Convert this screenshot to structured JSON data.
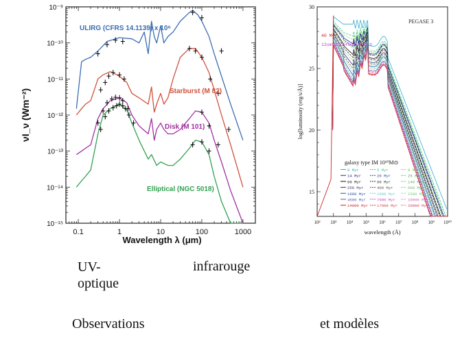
{
  "captions": {
    "uv": "UV-\noptique",
    "infra": "infrarouge",
    "observations": "Observations",
    "models": "et modèles"
  },
  "chart_data": [
    {
      "type": "line",
      "xscale": "log",
      "yscale": "log",
      "xlim": [
        0.05,
        2000
      ],
      "ylim": [
        1e-15,
        1e-09
      ],
      "xlabel": "Wavelength λ (μm)",
      "ylabel": "νI_ν (Wm⁻²)",
      "xticklabels": [
        "0.1",
        "1",
        "10",
        "100",
        "1000"
      ],
      "yticklabels": [
        "10⁻¹⁵",
        "10⁻¹⁴",
        "10⁻¹³",
        "10⁻¹²",
        "10⁻¹¹",
        "10⁻¹⁰",
        "10⁻⁹"
      ],
      "series": [
        {
          "name": "ULIRG (CFRS 14.1139) x 10⁶",
          "color": "#3a6cb0",
          "x": [
            0.09,
            0.12,
            0.15,
            0.2,
            0.3,
            0.5,
            1,
            2,
            3,
            4,
            5,
            6,
            7,
            8,
            10,
            12,
            15,
            20,
            30,
            50,
            60,
            80,
            100,
            150,
            200,
            300,
            500,
            1000
          ],
          "y": [
            1.5e-12,
            3e-11,
            3.5e-11,
            4e-11,
            6e-11,
            1.1e-10,
            1.4e-10,
            1.3e-10,
            1e-10,
            2e-10,
            5e-11,
            4e-10,
            1.5e-10,
            1e-10,
            3e-10,
            1e-10,
            1.5e-10,
            2e-10,
            4e-10,
            7e-10,
            8e-10,
            6e-10,
            4e-10,
            1.5e-10,
            5e-11,
            1.2e-11,
            2e-12,
            2e-13
          ],
          "points_x": [
            0.3,
            0.5,
            0.8,
            1.2,
            60,
            100,
            300
          ],
          "points_y": [
            5e-11,
            9e-11,
            1.2e-10,
            1.1e-10,
            7e-10,
            5e-10,
            6e-11
          ]
        },
        {
          "name": "Starburst (M 82)",
          "color": "#d0503a",
          "x": [
            0.09,
            0.12,
            0.15,
            0.2,
            0.3,
            0.4,
            0.6,
            1,
            1.5,
            2,
            3,
            5,
            6,
            7,
            8,
            10,
            12,
            15,
            20,
            30,
            50,
            70,
            100,
            150,
            200,
            300,
            500,
            1000
          ],
          "y": [
            1e-12,
            1.5e-12,
            2e-12,
            2.5e-12,
            1e-11,
            1.3e-11,
            1.6e-11,
            1.2e-11,
            8e-12,
            4e-12,
            3e-12,
            2e-12,
            6e-12,
            1.2e-12,
            2e-12,
            4e-12,
            2e-12,
            3e-12,
            1e-11,
            4e-11,
            7e-11,
            7e-11,
            4e-11,
            1.5e-11,
            5e-12,
            1e-12,
            1.5e-13,
            1e-14
          ],
          "points_x": [
            0.35,
            0.45,
            0.55,
            0.7,
            1,
            1.3,
            50,
            70,
            100,
            160,
            250,
            450
          ],
          "points_y": [
            5e-12,
            8e-12,
            1.2e-11,
            1.5e-11,
            1.3e-11,
            1e-11,
            7e-11,
            6e-11,
            4e-11,
            1e-11,
            4e-12,
            4e-13
          ]
        },
        {
          "name": "Disk (M 101)",
          "color": "#a030a0",
          "x": [
            0.09,
            0.12,
            0.15,
            0.2,
            0.3,
            0.4,
            0.6,
            1,
            1.5,
            2,
            3,
            5,
            6,
            7,
            8,
            10,
            12,
            15,
            20,
            30,
            50,
            70,
            100,
            150,
            200,
            300,
            500,
            1000
          ],
          "y": [
            8e-14,
            1e-13,
            1.2e-13,
            1.5e-13,
            8e-13,
            1.5e-12,
            2.5e-12,
            3e-12,
            2.2e-12,
            1e-12,
            5e-13,
            3e-13,
            8e-13,
            2e-13,
            4e-13,
            6e-13,
            4e-13,
            3e-13,
            3e-13,
            4e-13,
            8e-13,
            1.3e-12,
            1.2e-12,
            6e-13,
            2e-13,
            5e-14,
            8e-15,
            1e-15
          ],
          "points_x": [
            0.3,
            0.4,
            0.5,
            0.65,
            0.8,
            1,
            1.2,
            1.6,
            100,
            150,
            250
          ],
          "points_y": [
            6e-13,
            1.3e-12,
            2.2e-12,
            2.8e-12,
            3.1e-12,
            3e-12,
            2.5e-12,
            1.5e-12,
            1.2e-12,
            5e-13,
            1.5e-13
          ]
        },
        {
          "name": "Elliptical (NGC 5018)",
          "color": "#30a050",
          "x": [
            0.09,
            0.12,
            0.15,
            0.2,
            0.3,
            0.4,
            0.6,
            1,
            1.5,
            2,
            3,
            5,
            6,
            8,
            10,
            15,
            20,
            30,
            50,
            70,
            100,
            150,
            200,
            300,
            500,
            1000
          ],
          "y": [
            1e-14,
            1.5e-14,
            2e-14,
            3e-14,
            3e-13,
            1e-12,
            1.5e-12,
            2e-12,
            1.4e-12,
            6e-13,
            2e-13,
            6e-14,
            8e-14,
            4e-14,
            5e-14,
            4e-14,
            4e-14,
            6e-14,
            1.2e-13,
            2e-13,
            1.8e-13,
            8e-14,
            2e-14,
            4e-15,
            1e-15,
            1e-15
          ],
          "points_x": [
            0.35,
            0.45,
            0.55,
            0.7,
            0.85,
            1,
            1.2,
            1.4,
            1.7,
            2.2,
            60,
            100,
            150
          ],
          "points_y": [
            4e-13,
            9e-13,
            1.3e-12,
            1.6e-12,
            1.8e-12,
            2e-12,
            1.8e-12,
            1.5e-12,
            1e-12,
            6e-13,
            1.5e-13,
            1.8e-13,
            1e-13
          ]
        }
      ]
    },
    {
      "type": "line",
      "title": "PEGASE 3",
      "xscale": "log",
      "xlim": [
        100,
        10000000000.0
      ],
      "ylim": [
        13,
        30
      ],
      "xlabel": "wavelength (Å)",
      "ylabel": "log[luminosity (erg/s/Å)]",
      "xticklabels": [
        "10²",
        "10³",
        "10⁴",
        "10⁵",
        "10⁶",
        "10⁷",
        "10⁸",
        "10⁹",
        "10¹⁰"
      ],
      "yticklabels": [
        "15",
        "20",
        "25",
        "30"
      ],
      "annotations": [
        "40 Myr",
        "12umfilterbandwidth"
      ],
      "legend_title": "galaxy type IM 10¹⁰M⊙",
      "legend_entries": [
        "0 Myr",
        "5 Myr",
        "8 Myr",
        "14 Myr",
        "20 Myr",
        "25 Myr",
        "60 Myr",
        "90 Myr",
        "140 Myr",
        "250 Myr",
        "400 Myr",
        "600 Myr",
        "1000 Myr",
        "1600 Myr",
        "2500 Myr",
        "4500 Myr",
        "7000 Myr",
        "10000 Myr",
        "14000 Myr",
        "17000 Myr",
        "20000 Myr"
      ],
      "legend_colors": [
        "#33aacc",
        "#33cc88",
        "#66cc33",
        "#222288",
        "#2244aa",
        "#44aa44",
        "#111111",
        "#333333",
        "#66aa66",
        "#333366",
        "#555555",
        "#66bb66",
        "#2255aa",
        "#66cccc",
        "#77cc77",
        "#5555aa",
        "#cc44cc",
        "#cc66aa",
        "#cc2222",
        "#cc4444",
        "#cc4466"
      ]
    }
  ]
}
